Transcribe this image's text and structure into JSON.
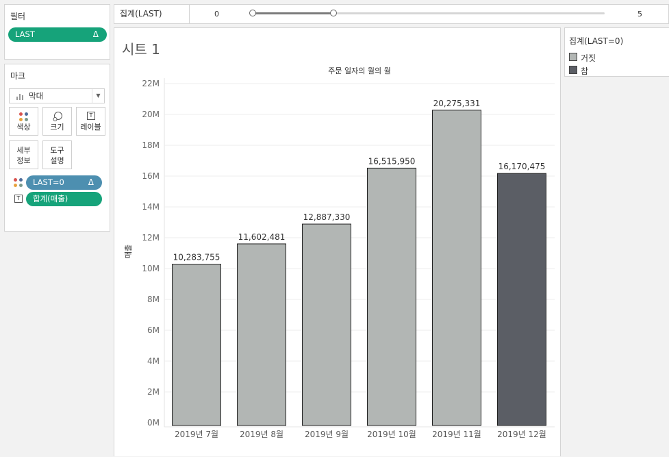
{
  "filters": {
    "title": "필터",
    "pill_label": "LAST",
    "pill_icon": "Δ"
  },
  "marks": {
    "title": "마크",
    "mark_type": "막대",
    "buttons": {
      "color": "색상",
      "size": "크기",
      "label": "레이블",
      "detail_1": "세부",
      "detail_2": "정보",
      "tooltip_1": "도구",
      "tooltip_2": "설명"
    },
    "shelf": [
      {
        "label": "LAST=0",
        "icon": "Δ",
        "kind": "color"
      },
      {
        "label": "합계(매출)",
        "kind": "label"
      }
    ]
  },
  "slider": {
    "label": "집계(LAST)",
    "min": "0",
    "max": "5",
    "selected_range": [
      0,
      1
    ]
  },
  "sheet": {
    "title": "시트 1"
  },
  "legend": {
    "title": "집계(LAST=0)",
    "items": [
      {
        "label": "거짓",
        "color": "#b2b6b4"
      },
      {
        "label": "참",
        "color": "#5b5e65"
      }
    ]
  },
  "chart_data": {
    "type": "bar",
    "title": "주문 일자의 월의 월",
    "ylabel": "매출",
    "ylim": [
      0,
      22000000
    ],
    "yticks": [
      "0M",
      "2M",
      "4M",
      "6M",
      "8M",
      "10M",
      "12M",
      "14M",
      "16M",
      "18M",
      "20M",
      "22M"
    ],
    "categories": [
      "2019년 7월",
      "2019년 8월",
      "2019년 9월",
      "2019년 10월",
      "2019년 11월",
      "2019년 12월"
    ],
    "values": [
      10283755,
      11602481,
      12887330,
      16515950,
      20275331,
      16170475
    ],
    "data_labels": [
      "10,283,755",
      "11,602,481",
      "12,887,330",
      "16,515,950",
      "20,275,331",
      "16,170,475"
    ],
    "bar_color_group": [
      "거짓",
      "거짓",
      "거짓",
      "거짓",
      "거짓",
      "참"
    ],
    "colors": {
      "거짓": "#b2b6b4",
      "참": "#5b5e65"
    },
    "grid": true
  }
}
